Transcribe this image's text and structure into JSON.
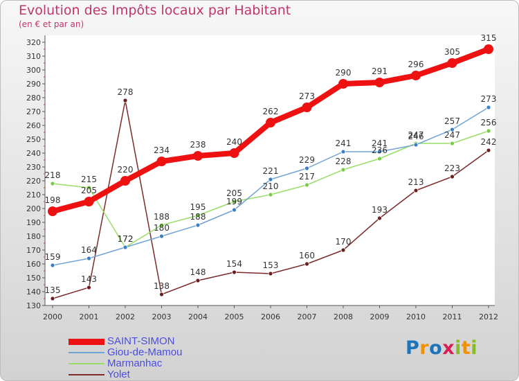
{
  "title": "Evolution des Impôts locaux par Habitant",
  "subtitle": "(en € et par an)",
  "logo": {
    "letters": [
      "P",
      "r",
      "o",
      "x",
      "i",
      "t",
      "i"
    ],
    "colors": [
      "#1a75bc",
      "#f29100",
      "#1a75bc",
      "#d61e57",
      "#86bc25",
      "#f29100",
      "#86bc25"
    ]
  },
  "chart_data": {
    "type": "line",
    "title": "Evolution des Impôts locaux par Habitant",
    "subtitle": "(en € et par an)",
    "xlabel": "",
    "ylabel": "",
    "x": [
      "2000",
      "2001",
      "2002",
      "2003",
      "2004",
      "2005",
      "2006",
      "2007",
      "2008",
      "2009",
      "2010",
      "2011",
      "2012"
    ],
    "ylim": [
      130,
      320
    ],
    "ytick_step": 10,
    "grid": false,
    "legend_position": "bottom-left",
    "series": [
      {
        "name": "SAINT-SIMON",
        "color": "#ee1111",
        "marker": "#ee1111",
        "values": [
          198,
          205,
          220,
          234,
          238,
          240,
          262,
          273,
          290,
          291,
          296,
          305,
          315
        ]
      },
      {
        "name": "Giou-de-Mamou",
        "color": "#6fa3d3",
        "marker": "#3a7fc4",
        "values": [
          159,
          164,
          172,
          180,
          188,
          199,
          221,
          229,
          241,
          241,
          246,
          257,
          273
        ]
      },
      {
        "name": "Marmanhac",
        "color": "#99dd66",
        "marker": "#78cc44",
        "values": [
          218,
          215,
          172,
          188,
          195,
          205,
          210,
          217,
          228,
          236,
          247,
          247,
          256
        ]
      },
      {
        "name": "Yolet",
        "color": "#7a2a2a",
        "marker": "#6a1e1e",
        "values": [
          135,
          143,
          278,
          138,
          148,
          154,
          153,
          160,
          170,
          193,
          213,
          223,
          242
        ]
      }
    ]
  }
}
